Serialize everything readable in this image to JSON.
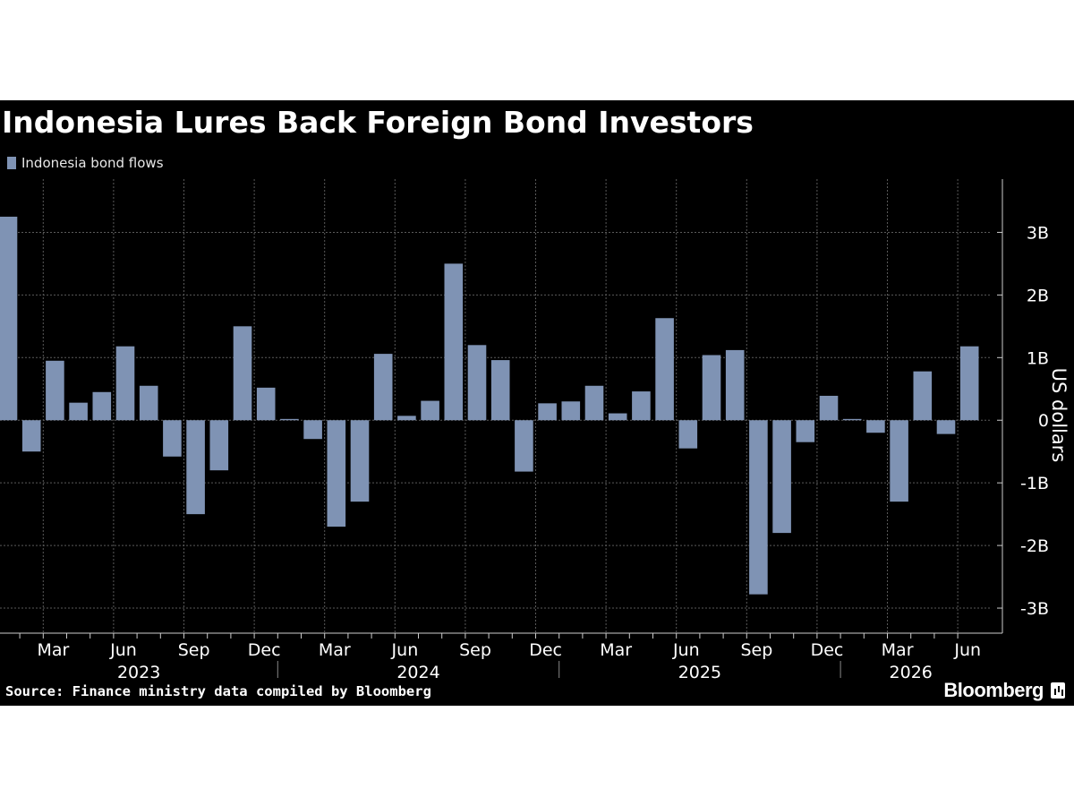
{
  "header": {
    "title": "Indonesia Lures Back Foreign Bond Investors"
  },
  "footer": {
    "source": "Source: Finance ministry data compiled by Bloomberg",
    "brand": "Bloomberg"
  },
  "colors": {
    "background": "#000000",
    "bar": "#7f93b4",
    "grid": "#5a5a5a",
    "text": "#ffffff"
  },
  "chart_data": {
    "type": "bar",
    "ylabel": "US dollars",
    "legend": {
      "position": "top-left",
      "entries": [
        "Indonesia bond flows"
      ]
    },
    "ylim": [
      -3.4,
      3.85
    ],
    "yticks": [
      3,
      2,
      1,
      0,
      -1,
      -2,
      -3
    ],
    "ytick_labels": [
      "3B",
      "2B",
      "1B",
      "0",
      "-1B",
      "-2B",
      "-3B"
    ],
    "grid": true,
    "months": [
      "Jan 2023",
      "Feb 2023",
      "Mar 2023",
      "Apr 2023",
      "May 2023",
      "Jun 2023",
      "Jul 2023",
      "Aug 2023",
      "Sep 2023",
      "Oct 2023",
      "Nov 2023",
      "Dec 2023",
      "Jan 2024",
      "Feb 2024",
      "Mar 2024",
      "Apr 2024",
      "May 2024",
      "Jun 2024",
      "Jul 2024",
      "Aug 2024",
      "Sep 2024",
      "Oct 2024",
      "Nov 2024",
      "Dec 2024",
      "Jan 2025",
      "Feb 2025",
      "Mar 2025",
      "Apr 2025",
      "May 2025",
      "Jun 2025",
      "Jul 2025",
      "Aug 2025",
      "Sep 2025",
      "Oct 2025",
      "Nov 2025",
      "Dec 2025",
      "Jan 2026",
      "Feb 2026",
      "Mar 2026",
      "Apr 2026",
      "May 2026",
      "Jun 2026"
    ],
    "x_month_labels": [
      "Mar",
      "Jun",
      "Sep",
      "Dec",
      "Mar",
      "Jun",
      "Sep",
      "Dec",
      "Mar",
      "Jun",
      "Sep",
      "Dec",
      "Mar",
      "Jun"
    ],
    "x_year_labels": [
      "2023",
      "2024",
      "2025",
      "2026"
    ],
    "series": [
      {
        "name": "Indonesia bond flows",
        "values": [
          3.25,
          -0.5,
          0.95,
          0.28,
          0.45,
          1.18,
          0.55,
          -0.58,
          -1.5,
          -0.8,
          1.5,
          0.52,
          0.02,
          -0.3,
          -1.7,
          -1.3,
          1.06,
          0.07,
          0.31,
          2.5,
          1.2,
          0.96,
          -0.82,
          0.27,
          0.3,
          0.55,
          0.11,
          0.46,
          1.63,
          -0.45,
          1.04,
          1.12,
          -2.78,
          -1.8,
          -0.35,
          0.39,
          0.02,
          -0.2,
          -1.3,
          0.78,
          -0.22,
          1.18
        ]
      }
    ]
  }
}
